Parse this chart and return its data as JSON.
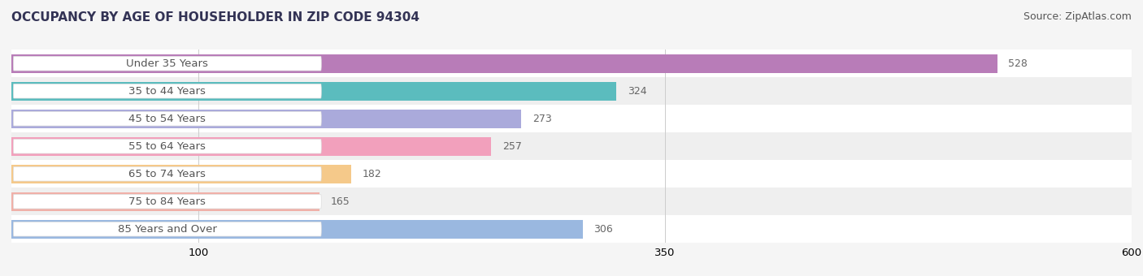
{
  "title": "OCCUPANCY BY AGE OF HOUSEHOLDER IN ZIP CODE 94304",
  "source": "Source: ZipAtlas.com",
  "categories": [
    "Under 35 Years",
    "35 to 44 Years",
    "45 to 54 Years",
    "55 to 64 Years",
    "65 to 74 Years",
    "75 to 84 Years",
    "85 Years and Over"
  ],
  "values": [
    528,
    324,
    273,
    257,
    182,
    165,
    306
  ],
  "bar_colors": [
    "#b87cb8",
    "#5bbcbe",
    "#aaaadb",
    "#f2a0bc",
    "#f5c98a",
    "#f0b0a8",
    "#9ab8e0"
  ],
  "xlim": [
    0,
    600
  ],
  "xticks": [
    100,
    350,
    600
  ],
  "bar_height": 0.68,
  "background_color": "#f5f5f5",
  "title_fontsize": 11,
  "source_fontsize": 9,
  "label_fontsize": 9.5,
  "value_fontsize": 9
}
